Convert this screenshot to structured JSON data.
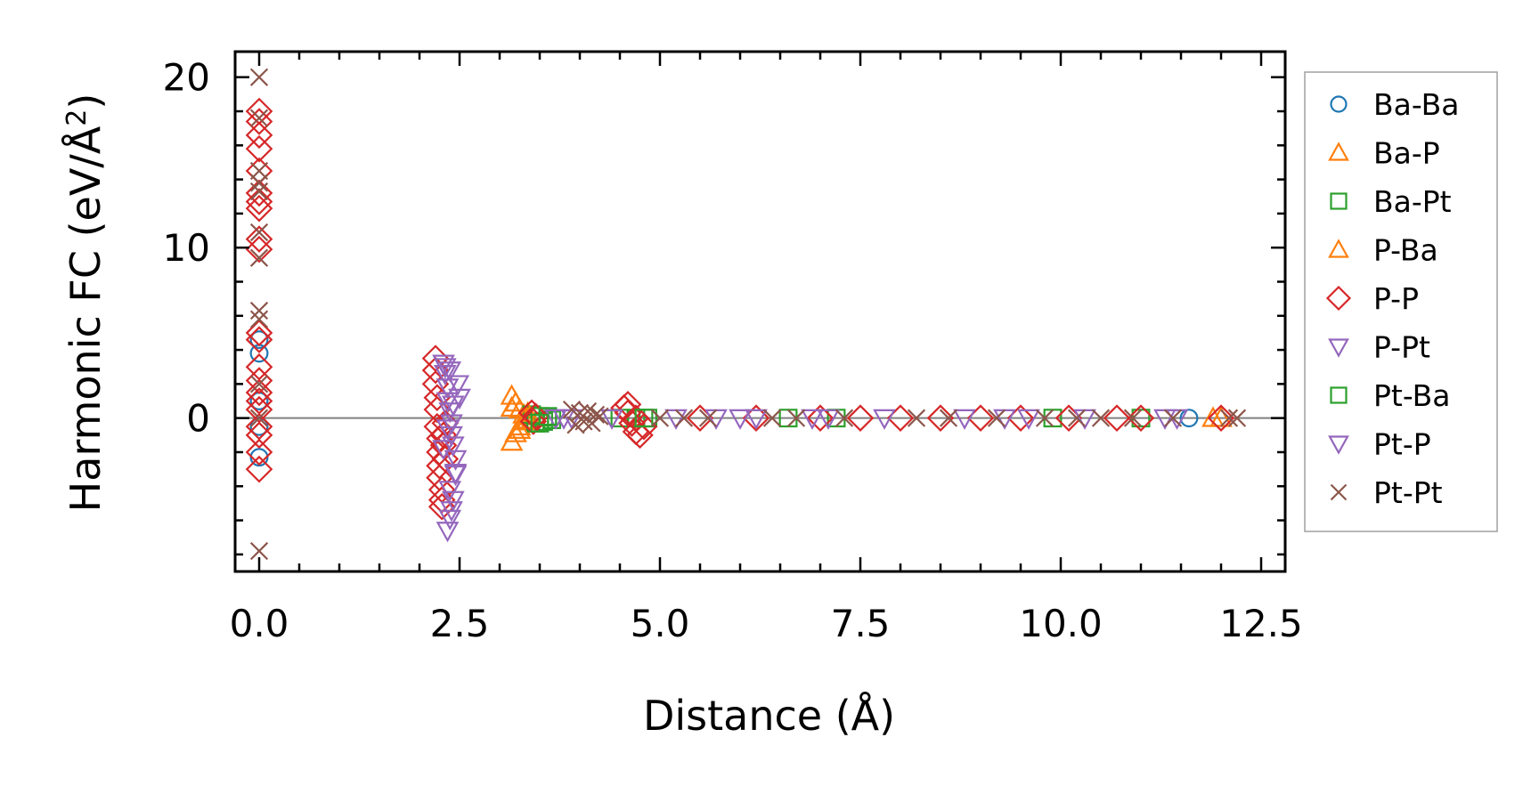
{
  "chart_data": {
    "type": "scatter",
    "title": "",
    "xlabel": "Distance (Å)",
    "ylabel_main": "Harmonic FC (eV/Å",
    "ylabel_sup": "2",
    "ylabel_close": ")",
    "xlim": [
      -0.3,
      12.8
    ],
    "ylim": [
      -9,
      21.5
    ],
    "xticks": [
      0.0,
      2.5,
      5.0,
      7.5,
      10.0,
      12.5
    ],
    "xtick_labels": [
      "0.0",
      "2.5",
      "5.0",
      "7.5",
      "10.0",
      "12.5"
    ],
    "yticks": [
      0,
      10,
      20
    ],
    "ytick_labels": [
      "0",
      "10",
      "20"
    ],
    "zero_line": true,
    "legend_position": "right-outside",
    "series": [
      {
        "name": "Ba-Ba",
        "marker": "circle",
        "color": "#1f77b4",
        "x": [
          0.0,
          0.0,
          0.0,
          0.0,
          0.0,
          11.6
        ],
        "y": [
          3.8,
          4.6,
          -2.3,
          1.0,
          -0.5,
          0.0
        ]
      },
      {
        "name": "Ba-P",
        "marker": "triangle-up",
        "color": "#ff7f0e",
        "x": [
          3.15,
          3.15,
          3.2,
          3.2,
          3.25,
          3.25,
          3.3,
          3.3,
          3.35,
          3.35,
          11.9,
          12.0
        ],
        "y": [
          1.3,
          -1.4,
          0.9,
          -0.9,
          0.5,
          -0.5,
          0.2,
          -0.2,
          0.1,
          -0.1,
          0.0,
          0.0
        ]
      },
      {
        "name": "Ba-Pt",
        "marker": "square",
        "color": "#2ca02c",
        "x": [
          3.4,
          3.45,
          3.5,
          3.55,
          3.6,
          3.65,
          4.5,
          4.7,
          4.85,
          6.6,
          7.2,
          9.9,
          11.0
        ],
        "y": [
          0.2,
          -0.3,
          0.1,
          -0.2,
          0.05,
          -0.1,
          0.0,
          0.0,
          0.0,
          0.0,
          0.0,
          0.0,
          0.0
        ]
      },
      {
        "name": "P-Ba",
        "marker": "triangle-up",
        "color": "#ff7f0e",
        "x": [
          3.15,
          3.25,
          3.35
        ],
        "y": [
          0.6,
          -0.7,
          0.3
        ]
      },
      {
        "name": "P-P",
        "marker": "diamond",
        "color": "#d62728",
        "x": [
          0.0,
          0.0,
          0.0,
          0.0,
          0.0,
          0.0,
          0.0,
          0.0,
          0.0,
          0.0,
          0.0,
          0.0,
          0.0,
          0.0,
          0.0,
          0.0,
          0.0,
          0.0,
          0.0,
          0.0,
          0.0,
          2.2,
          2.2,
          2.2,
          2.22,
          2.22,
          2.22,
          2.25,
          2.25,
          2.25,
          2.25,
          2.28,
          2.28,
          2.28,
          2.3,
          2.3,
          2.32,
          2.32,
          3.4,
          3.42,
          3.45,
          4.55,
          4.6,
          4.65,
          4.7,
          4.75,
          4.8,
          4.6,
          4.7,
          5.5,
          6.2,
          7.0,
          7.5,
          8.0,
          8.5,
          9.0,
          9.5,
          10.1,
          10.7,
          11.0,
          12.0
        ],
        "y": [
          18.0,
          17.4,
          16.6,
          15.8,
          14.5,
          13.2,
          12.7,
          12.3,
          10.5,
          9.9,
          5.0,
          4.6,
          3.0,
          2.2,
          1.5,
          1.0,
          0.5,
          -0.5,
          -1.0,
          -2.0,
          -3.0,
          3.5,
          2.8,
          2.0,
          1.2,
          0.5,
          -0.5,
          -1.2,
          -2.0,
          -2.8,
          -3.5,
          -4.2,
          -4.8,
          -5.2,
          -1.0,
          -1.6,
          -0.3,
          -2.4,
          0.3,
          -0.2,
          0.1,
          0.6,
          0.3,
          -0.3,
          -0.8,
          -1.0,
          -0.5,
          0.8,
          0.0,
          0.0,
          0.0,
          0.0,
          0.0,
          0.0,
          0.0,
          0.0,
          0.0,
          0.0,
          0.0,
          0.0,
          0.0
        ]
      },
      {
        "name": "P-Pt",
        "marker": "triangle-down",
        "color": "#9467bd",
        "x": [
          2.3,
          2.32,
          2.35,
          2.35,
          2.38,
          2.4,
          2.4,
          2.42,
          2.45,
          2.45,
          2.48,
          2.5,
          2.35,
          2.38,
          2.42,
          2.3,
          3.7,
          3.9,
          4.4,
          5.2,
          6.0,
          6.2,
          6.9,
          7.8,
          8.8,
          9.6,
          10.3,
          11.3,
          11.45
        ],
        "y": [
          3.2,
          2.6,
          1.8,
          1.0,
          0.4,
          -0.3,
          -1.0,
          -1.6,
          -2.4,
          -3.2,
          2.0,
          1.2,
          -0.6,
          2.8,
          0.8,
          -1.8,
          0.0,
          0.0,
          0.0,
          0.0,
          0.0,
          0.0,
          0.0,
          0.0,
          0.0,
          0.0,
          0.0,
          0.0,
          0.0
        ]
      },
      {
        "name": "Pt-Ba",
        "marker": "square",
        "color": "#2ca02c",
        "x": [
          3.5,
          3.6,
          4.8
        ],
        "y": [
          -0.3,
          0.1,
          0.0
        ]
      },
      {
        "name": "Pt-P",
        "marker": "triangle-down",
        "color": "#9467bd",
        "x": [
          2.35,
          2.38,
          2.4,
          2.42,
          2.45,
          2.38,
          2.32,
          3.8,
          5.7,
          7.1,
          9.3
        ],
        "y": [
          -6.6,
          -5.9,
          -5.4,
          -4.8,
          -3.3,
          -4.2,
          3.0,
          0.0,
          0.0,
          0.0,
          0.0
        ]
      },
      {
        "name": "Pt-Pt",
        "marker": "x",
        "color": "#8c564b",
        "x": [
          0.0,
          0.0,
          0.0,
          0.0,
          0.0,
          0.0,
          0.0,
          0.0,
          0.0,
          0.0,
          0.0,
          0.0,
          3.9,
          3.95,
          4.0,
          4.05,
          4.1,
          4.15,
          4.2,
          4.25,
          5.0,
          5.3,
          5.6,
          6.4,
          6.7,
          7.3,
          8.2,
          8.6,
          9.2,
          9.8,
          10.2,
          10.5,
          10.9,
          11.4,
          12.1,
          12.2
        ],
        "y": [
          20.0,
          17.6,
          14.5,
          13.8,
          13.3,
          10.9,
          9.4,
          6.3,
          5.8,
          2.0,
          0.0,
          -7.8,
          0.5,
          -0.4,
          0.3,
          -0.2,
          0.4,
          -0.3,
          0.2,
          0.1,
          0.0,
          0.0,
          0.0,
          0.0,
          0.0,
          0.0,
          0.0,
          0.0,
          0.0,
          0.0,
          0.0,
          0.0,
          0.0,
          0.0,
          0.0,
          0.0
        ]
      }
    ]
  }
}
